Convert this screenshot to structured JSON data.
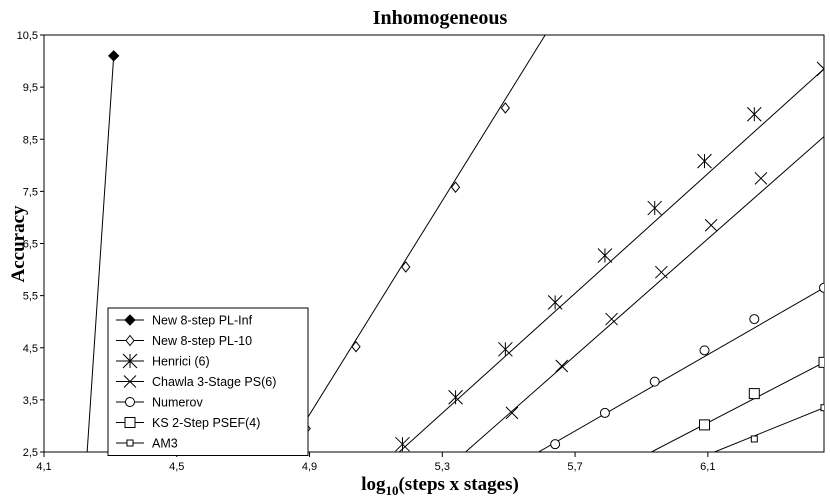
{
  "chart_data": {
    "type": "line",
    "title": "Inhomogeneous",
    "xlabel_main": "log",
    "xlabel_sub": "10",
    "xlabel_rest": "(steps x stages)",
    "ylabel": "Accuracy",
    "xlim": [
      4.1,
      6.45
    ],
    "ylim": [
      2.5,
      10.5
    ],
    "xticks": [
      "4,1",
      "4,5",
      "4,9",
      "5,3",
      "5,7",
      "6,1"
    ],
    "xtick_values": [
      4.1,
      4.5,
      4.9,
      5.3,
      5.7,
      6.1
    ],
    "yticks": [
      "2,5",
      "3,5",
      "4,5",
      "5,5",
      "6,5",
      "7,5",
      "8,5",
      "9,5",
      "10,5"
    ],
    "ytick_values": [
      2.5,
      3.5,
      4.5,
      5.5,
      6.5,
      7.5,
      8.5,
      9.5,
      10.5
    ],
    "grid": false,
    "legend_position": "bottom-left",
    "series": [
      {
        "name": "New 8-step PL-Inf",
        "marker": "diamond-filled",
        "line": [
          [
            4.23,
            2.5
          ],
          [
            4.31,
            10.1
          ]
        ],
        "points": [
          [
            4.31,
            10.1
          ]
        ]
      },
      {
        "name": "New 8-step PL-10",
        "marker": "diamond-open",
        "line": [
          [
            4.83,
            2.5
          ],
          [
            5.61,
            10.5
          ]
        ],
        "points": [
          [
            4.89,
            2.95
          ],
          [
            5.04,
            4.52
          ],
          [
            5.19,
            6.05
          ],
          [
            5.34,
            7.58
          ],
          [
            5.49,
            9.1
          ]
        ]
      },
      {
        "name": "Henrici (6)",
        "marker": "asterisk",
        "line": [
          [
            5.17,
            2.5
          ],
          [
            6.45,
            9.85
          ]
        ],
        "points": [
          [
            5.18,
            2.65
          ],
          [
            5.34,
            3.55
          ],
          [
            5.49,
            4.47
          ],
          [
            5.64,
            5.37
          ],
          [
            5.79,
            6.27
          ],
          [
            5.94,
            7.18
          ],
          [
            6.09,
            8.08
          ],
          [
            6.24,
            8.98
          ],
          [
            6.45,
            9.85
          ]
        ]
      },
      {
        "name": "Chawla 3-Stage PS(6)",
        "marker": "x",
        "line": [
          [
            5.37,
            2.5
          ],
          [
            6.45,
            8.55
          ]
        ],
        "points": [
          [
            5.51,
            3.25
          ],
          [
            5.66,
            4.15
          ],
          [
            5.81,
            5.05
          ],
          [
            5.96,
            5.95
          ],
          [
            6.11,
            6.85
          ],
          [
            6.26,
            7.75
          ]
        ]
      },
      {
        "name": "Numerov",
        "marker": "circle",
        "line": [
          [
            5.59,
            2.5
          ],
          [
            6.45,
            5.65
          ]
        ],
        "points": [
          [
            5.64,
            2.65
          ],
          [
            5.79,
            3.25
          ],
          [
            5.94,
            3.85
          ],
          [
            6.09,
            4.45
          ],
          [
            6.24,
            5.05
          ],
          [
            6.45,
            5.65
          ]
        ]
      },
      {
        "name": "KS 2-Step PSEF(4)",
        "marker": "square",
        "line": [
          [
            5.93,
            2.5
          ],
          [
            6.45,
            4.22
          ]
        ],
        "points": [
          [
            6.09,
            3.02
          ],
          [
            6.24,
            3.62
          ],
          [
            6.45,
            4.22
          ]
        ]
      },
      {
        "name": "AM3",
        "marker": "small-square",
        "line": [
          [
            6.12,
            2.5
          ],
          [
            6.45,
            3.35
          ]
        ],
        "points": [
          [
            6.24,
            2.75
          ],
          [
            6.45,
            3.35
          ]
        ]
      }
    ]
  }
}
